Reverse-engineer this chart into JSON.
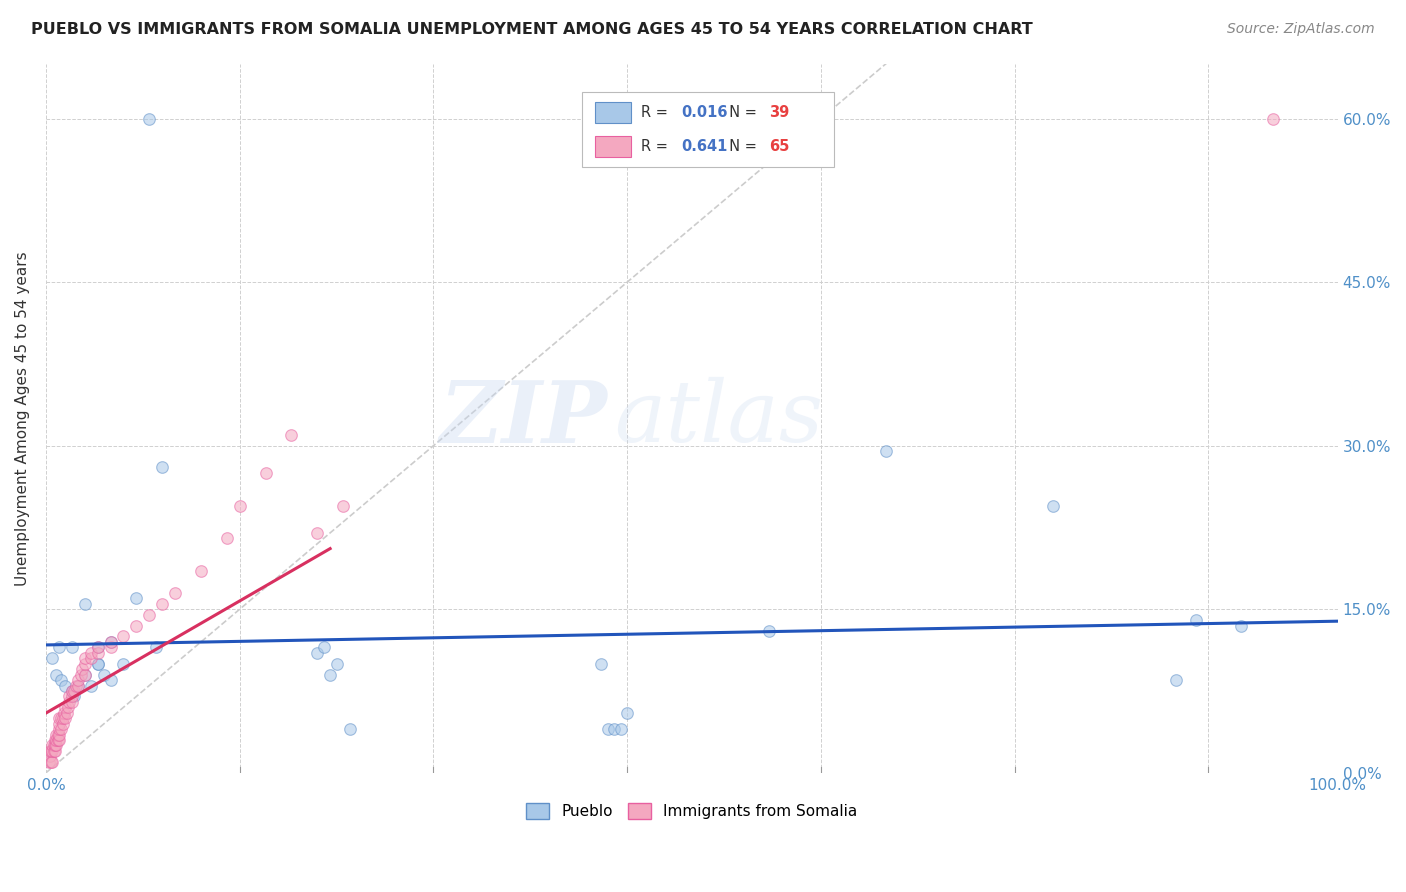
{
  "title": "PUEBLO VS IMMIGRANTS FROM SOMALIA UNEMPLOYMENT AMONG AGES 45 TO 54 YEARS CORRELATION CHART",
  "source": "Source: ZipAtlas.com",
  "ylabel": "Unemployment Among Ages 45 to 54 years",
  "xlim": [
    0,
    1.0
  ],
  "ylim": [
    0,
    0.65
  ],
  "xtick_vals": [
    0.0,
    0.15,
    0.3,
    0.45,
    0.6,
    0.75,
    0.9,
    1.0
  ],
  "xticklabels": [
    "0.0%",
    "",
    "",
    "",
    "",
    "",
    "",
    "100.0%"
  ],
  "ytick_vals": [
    0.0,
    0.15,
    0.3,
    0.45,
    0.6
  ],
  "yticklabels_right": [
    "0.0%",
    "15.0%",
    "30.0%",
    "45.0%",
    "60.0%"
  ],
  "pueblo_x": [
    0.08,
    0.03,
    0.05,
    0.04,
    0.02,
    0.01,
    0.005,
    0.008,
    0.012,
    0.015,
    0.02,
    0.022,
    0.025,
    0.03,
    0.035,
    0.04,
    0.04,
    0.045,
    0.05,
    0.06,
    0.07,
    0.085,
    0.09,
    0.21,
    0.215,
    0.22,
    0.225,
    0.235,
    0.435,
    0.44,
    0.445,
    0.56,
    0.65,
    0.78,
    0.875,
    0.89,
    0.925,
    0.43,
    0.45
  ],
  "pueblo_y": [
    0.6,
    0.155,
    0.12,
    0.1,
    0.115,
    0.115,
    0.105,
    0.09,
    0.085,
    0.08,
    0.075,
    0.07,
    0.08,
    0.09,
    0.08,
    0.115,
    0.1,
    0.09,
    0.085,
    0.1,
    0.16,
    0.115,
    0.28,
    0.11,
    0.115,
    0.09,
    0.1,
    0.04,
    0.04,
    0.04,
    0.04,
    0.13,
    0.295,
    0.245,
    0.085,
    0.14,
    0.135,
    0.1,
    0.055
  ],
  "somalia_x": [
    0.002,
    0.003,
    0.003,
    0.004,
    0.004,
    0.005,
    0.005,
    0.005,
    0.006,
    0.006,
    0.007,
    0.007,
    0.007,
    0.008,
    0.008,
    0.008,
    0.009,
    0.009,
    0.01,
    0.01,
    0.01,
    0.01,
    0.01,
    0.012,
    0.012,
    0.013,
    0.013,
    0.014,
    0.015,
    0.015,
    0.016,
    0.017,
    0.018,
    0.018,
    0.02,
    0.02,
    0.02,
    0.022,
    0.023,
    0.025,
    0.025,
    0.027,
    0.028,
    0.03,
    0.03,
    0.03,
    0.035,
    0.035,
    0.04,
    0.04,
    0.05,
    0.05,
    0.06,
    0.07,
    0.08,
    0.09,
    0.1,
    0.12,
    0.14,
    0.15,
    0.17,
    0.19,
    0.21,
    0.23,
    0.95
  ],
  "somalia_y": [
    0.01,
    0.015,
    0.02,
    0.01,
    0.02,
    0.01,
    0.02,
    0.025,
    0.02,
    0.025,
    0.02,
    0.025,
    0.03,
    0.025,
    0.03,
    0.035,
    0.03,
    0.035,
    0.03,
    0.035,
    0.04,
    0.045,
    0.05,
    0.04,
    0.05,
    0.045,
    0.05,
    0.055,
    0.05,
    0.06,
    0.055,
    0.06,
    0.065,
    0.07,
    0.065,
    0.07,
    0.075,
    0.075,
    0.08,
    0.08,
    0.085,
    0.09,
    0.095,
    0.09,
    0.1,
    0.105,
    0.105,
    0.11,
    0.11,
    0.115,
    0.115,
    0.12,
    0.125,
    0.135,
    0.145,
    0.155,
    0.165,
    0.185,
    0.215,
    0.245,
    0.275,
    0.31,
    0.22,
    0.245,
    0.6
  ],
  "pueblo_color": "#a8c8e8",
  "somalia_color": "#f4a8c0",
  "pueblo_edge_color": "#6090c8",
  "somalia_edge_color": "#e860a0",
  "pueblo_R": "0.016",
  "pueblo_N": "39",
  "somalia_R": "0.641",
  "somalia_N": "65",
  "blue_line_color": "#2255bb",
  "pink_line_color": "#d83060",
  "diagonal_color": "#cccccc",
  "r_color": "#4472c4",
  "n_color": "#e84040",
  "background_color": "#ffffff",
  "watermark_zip": "ZIP",
  "watermark_atlas": "atlas",
  "marker_size": 70,
  "alpha": 0.55
}
